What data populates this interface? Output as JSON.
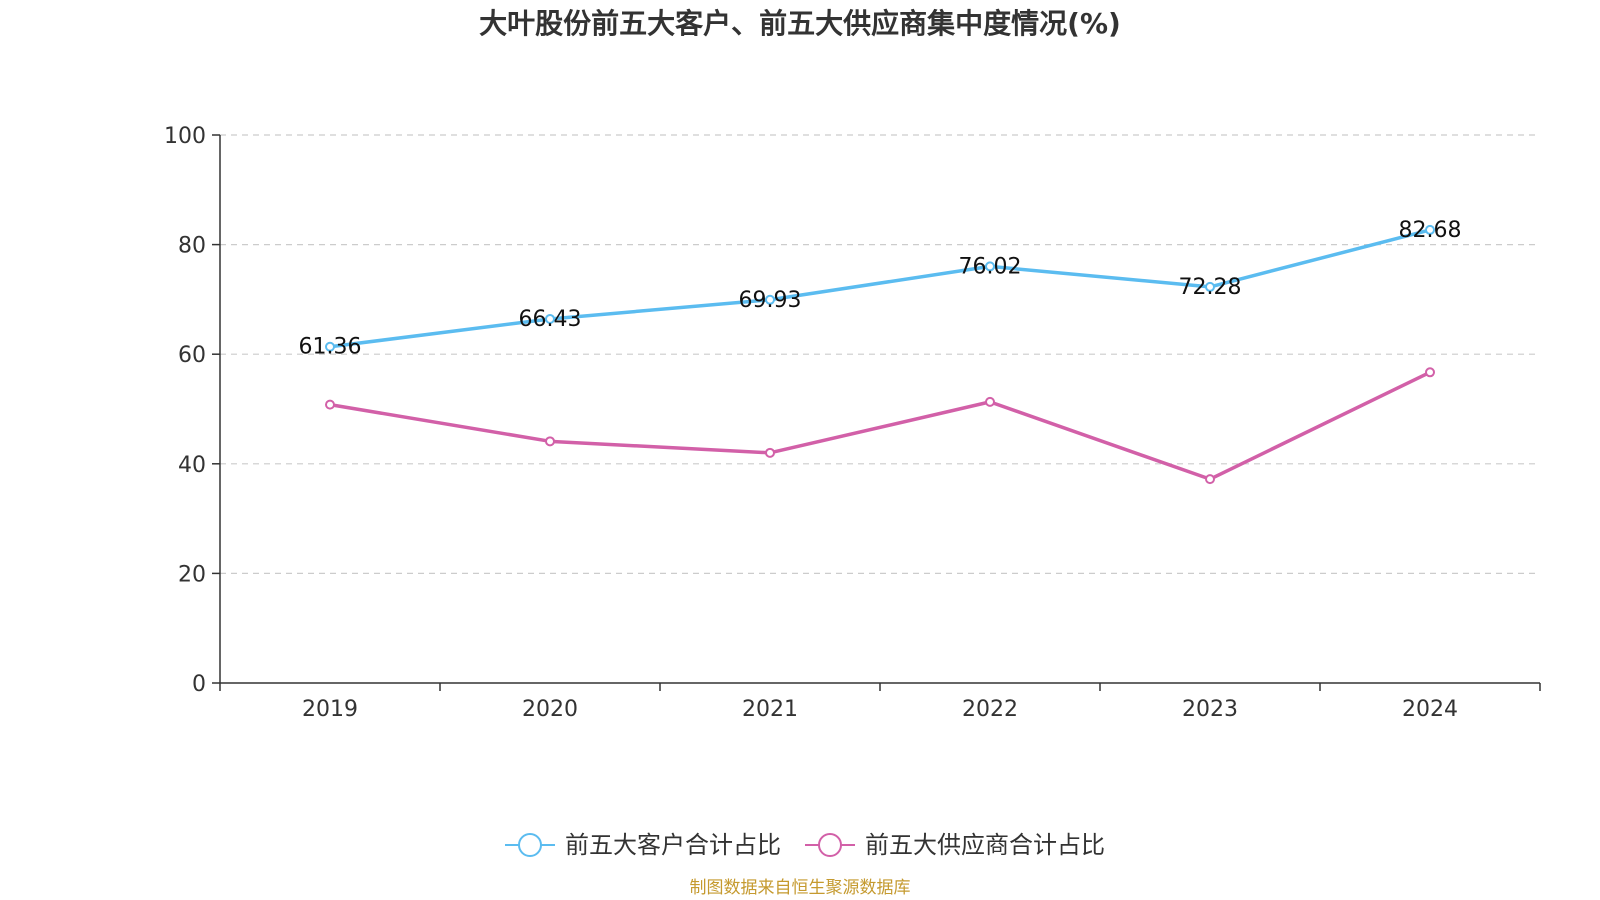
{
  "chart_data": {
    "type": "line",
    "title": "大叶股份前五大客户、前五大供应商集中度情况(%)",
    "categories": [
      "2019",
      "2020",
      "2021",
      "2022",
      "2023",
      "2024"
    ],
    "ylim": [
      0,
      100
    ],
    "yticks": [
      0,
      20,
      40,
      60,
      80,
      100
    ],
    "grid": true,
    "legend_position": "bottom",
    "series": [
      {
        "name": "前五大客户合计占比",
        "color": "#5bbcf0",
        "values": [
          61.36,
          66.43,
          69.93,
          76.02,
          72.28,
          82.68
        ],
        "labels": [
          "61.36",
          "66.43",
          "69.93",
          "76.02",
          "72.28",
          "82.68"
        ],
        "show_labels": true
      },
      {
        "name": "前五大供应商合计占比",
        "color": "#d260a8",
        "values": [
          50.8,
          44.1,
          42.0,
          51.3,
          37.2,
          56.7
        ],
        "show_labels": false
      }
    ],
    "source": "制图数据来自恒生聚源数据库"
  }
}
